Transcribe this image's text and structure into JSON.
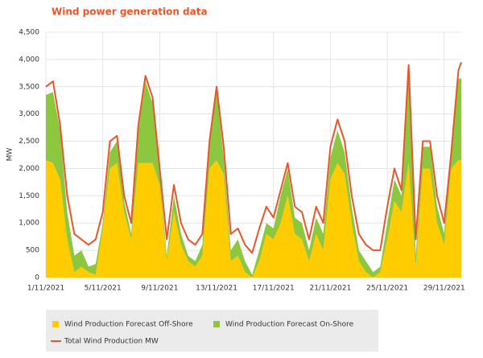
{
  "chart_data": {
    "type": "stacked_area_line",
    "title": "Wind power generation data",
    "y_label": "MW",
    "x": [
      0,
      0.5,
      1,
      1.5,
      2,
      2.5,
      3,
      3.5,
      4,
      4.5,
      5,
      5.5,
      6,
      6.5,
      7,
      7.5,
      8,
      8.5,
      9,
      9.5,
      10,
      10.5,
      11,
      11.5,
      12,
      12.5,
      13,
      13.5,
      14,
      14.5,
      15,
      15.5,
      16,
      16.5,
      17,
      17.5,
      18,
      18.5,
      19,
      19.5,
      20,
      20.5,
      21,
      21.5,
      22,
      22.5,
      23,
      23.5,
      24,
      24.5,
      25,
      25.5,
      26,
      26.5,
      27,
      27.5,
      28,
      28.5,
      29,
      29.2
    ],
    "series": [
      {
        "name": "Wind Production Forecast Off-Shore",
        "color": "#ffcc00",
        "stack": true,
        "values": [
          2150,
          2100,
          1800,
          700,
          100,
          200,
          100,
          50,
          900,
          2000,
          2100,
          1200,
          700,
          2100,
          2100,
          2100,
          1700,
          300,
          1200,
          600,
          300,
          200,
          400,
          2000,
          2150,
          1900,
          300,
          400,
          100,
          0,
          300,
          800,
          700,
          1000,
          1500,
          800,
          700,
          300,
          800,
          500,
          1800,
          2100,
          1900,
          1000,
          300,
          100,
          0,
          100,
          700,
          1400,
          1200,
          2100,
          200,
          2000,
          2000,
          1000,
          600,
          2000,
          2150,
          2150
        ]
      },
      {
        "name": "Wind Production Forecast On-Shore",
        "color": "#8dc63f",
        "stack": true,
        "values": [
          1200,
          1300,
          900,
          500,
          300,
          300,
          100,
          200,
          100,
          300,
          400,
          200,
          100,
          600,
          1500,
          1100,
          200,
          100,
          300,
          200,
          100,
          100,
          200,
          400,
          1300,
          300,
          200,
          300,
          200,
          50,
          200,
          200,
          200,
          500,
          500,
          300,
          300,
          200,
          300,
          300,
          400,
          600,
          400,
          300,
          200,
          200,
          100,
          100,
          300,
          400,
          300,
          1600,
          200,
          400,
          400,
          300,
          200,
          300,
          1500,
          1500
        ]
      },
      {
        "name": "Total Wind Production MW",
        "color": "#e8562a",
        "stack": false,
        "values": [
          3500,
          3600,
          2800,
          1500,
          800,
          700,
          600,
          700,
          1200,
          2500,
          2600,
          1500,
          1000,
          2800,
          3700,
          3300,
          2000,
          700,
          1700,
          1000,
          700,
          600,
          800,
          2500,
          3500,
          2400,
          800,
          900,
          600,
          450,
          900,
          1300,
          1100,
          1600,
          2100,
          1300,
          1200,
          700,
          1300,
          1000,
          2400,
          2900,
          2500,
          1500,
          800,
          600,
          500,
          500,
          1300,
          2000,
          1600,
          3900,
          700,
          2500,
          2500,
          1500,
          1000,
          2300,
          3800,
          3950
        ]
      }
    ],
    "xlim": [
      0,
      29.2
    ],
    "xticks": [
      {
        "value": 0,
        "label": "1/11/2021"
      },
      {
        "value": 4,
        "label": "5/11/2021"
      },
      {
        "value": 8,
        "label": "9/11/2021"
      },
      {
        "value": 12,
        "label": "13/11/2021"
      },
      {
        "value": 16,
        "label": "17/11/2021"
      },
      {
        "value": 20,
        "label": "21/11/2021"
      },
      {
        "value": 24,
        "label": "25/11/2021"
      },
      {
        "value": 28,
        "label": "29/11/2021"
      }
    ],
    "ylim": [
      0,
      4500
    ],
    "yticks": [
      0,
      500,
      {
        "value": 1000,
        "label": "1,000"
      },
      {
        "value": 1500,
        "label": "1,500"
      },
      {
        "value": 2000,
        "label": "2,000"
      },
      {
        "value": 2500,
        "label": "2,500"
      },
      {
        "value": 3000,
        "label": "3,000"
      },
      {
        "value": 3500,
        "label": "3,500"
      },
      {
        "value": 4000,
        "label": "4,000"
      },
      {
        "value": 4500,
        "label": "4,500"
      }
    ],
    "grid": true
  }
}
